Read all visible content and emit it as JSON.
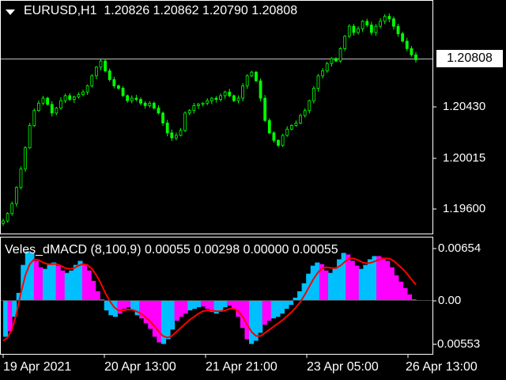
{
  "price_panel": {
    "symbol_tf": "EURUSD,H1",
    "open": "1.20826",
    "high": "1.20862",
    "low": "1.20790",
    "close": "1.20808",
    "current_price_tag": "1.20808",
    "price_axis": [
      "1.20430",
      "1.20015",
      "1.19600"
    ],
    "candle_color": "#00ff00",
    "bid_line_color": "#c0c0c0",
    "price_series": [
      1.1951,
      1.1957,
      1.1965,
      1.1978,
      1.1993,
      1.201,
      1.2028,
      1.204,
      1.2046,
      1.205,
      1.2045,
      1.2038,
      1.2042,
      1.2048,
      1.2052,
      1.2049,
      1.2051,
      1.2053,
      1.2055,
      1.206,
      1.2068,
      1.2075,
      1.208,
      1.2072,
      1.2065,
      1.206,
      1.2058,
      1.2052,
      1.2048,
      1.205,
      1.2049,
      1.2046,
      1.2044,
      1.2046,
      1.2042,
      1.2038,
      1.203,
      1.2022,
      1.2018,
      1.202,
      1.2024,
      1.2038,
      1.204,
      1.2044,
      1.2045,
      1.2046,
      1.2048,
      1.205,
      1.2049,
      1.2052,
      1.2055,
      1.2052,
      1.2048,
      1.205,
      1.206,
      1.2068,
      1.2071,
      1.2064,
      1.205,
      1.2032,
      1.2022,
      1.2016,
      1.2012,
      1.202,
      1.2025,
      1.2028,
      1.203,
      1.2036,
      1.204,
      1.2048,
      1.2058,
      1.2068,
      1.2072,
      1.2078,
      1.2082,
      1.208,
      1.209,
      1.21,
      1.2108,
      1.2103,
      1.2106,
      1.2112,
      1.2109,
      1.2103,
      1.2108,
      1.2112,
      1.2116,
      1.2114,
      1.2108,
      1.2102,
      1.2096,
      1.209,
      1.2085,
      1.2081
    ]
  },
  "indicator_panel": {
    "title": "Veles_dMACD (8,100,9) 0.00055 0.00298 0.00000 0.00055",
    "axis": [
      "0.00654",
      "0.00",
      "-0.00553"
    ],
    "bar_colors": [
      "#00bfff",
      "#ff00ff"
    ],
    "signal_color": "#ff0000",
    "histogram": [
      -0.0045,
      -0.0038,
      -0.002,
      0.001,
      0.0045,
      0.0062,
      0.006,
      0.005,
      0.0042,
      0.004,
      0.0045,
      0.0048,
      0.0044,
      0.0038,
      0.0035,
      0.0038,
      0.0045,
      0.005,
      0.0046,
      0.0038,
      0.0025,
      0.0012,
      0.0002,
      -0.0012,
      -0.0018,
      -0.002,
      -0.0016,
      -0.001,
      -0.0008,
      -0.0012,
      -0.0018,
      -0.0022,
      -0.0028,
      -0.0035,
      -0.0045,
      -0.0052,
      -0.0054,
      -0.0048,
      -0.0036,
      -0.0025,
      -0.002,
      -0.0016,
      -0.0012,
      -0.001,
      -0.0008,
      -0.0007,
      -0.001,
      -0.0014,
      -0.0016,
      -0.0012,
      -0.0008,
      -0.0006,
      -0.001,
      -0.002,
      -0.0034,
      -0.0048,
      -0.0054,
      -0.005,
      -0.004,
      -0.003,
      -0.0025,
      -0.0022,
      -0.002,
      -0.0016,
      -0.001,
      -0.0005,
      0.0004,
      0.0012,
      0.0022,
      0.0034,
      0.0044,
      0.0048,
      0.0046,
      0.0038,
      0.0035,
      0.004,
      0.0052,
      0.006,
      0.0058,
      0.005,
      0.0044,
      0.004,
      0.0045,
      0.0052,
      0.0056,
      0.0056,
      0.0054,
      0.005,
      0.0042,
      0.0032,
      0.0024,
      0.0016,
      0.0008,
      0.0002
    ],
    "hist_colors": [
      0,
      1,
      0,
      0,
      0,
      0,
      0,
      1,
      1,
      0,
      0,
      0,
      1,
      1,
      0,
      0,
      0,
      0,
      1,
      1,
      1,
      1,
      1,
      0,
      0,
      0,
      1,
      1,
      1,
      0,
      0,
      1,
      1,
      1,
      1,
      1,
      0,
      0,
      0,
      1,
      1,
      1,
      0,
      0,
      0,
      1,
      1,
      1,
      0,
      0,
      0,
      1,
      1,
      1,
      1,
      1,
      0,
      0,
      0,
      1,
      1,
      0,
      0,
      0,
      0,
      0,
      0,
      0,
      0,
      0,
      0,
      0,
      1,
      1,
      0,
      0,
      0,
      0,
      1,
      1,
      1,
      0,
      0,
      0,
      0,
      1,
      1,
      1,
      1,
      1,
      1,
      1,
      1,
      1
    ],
    "signal": [
      -0.005,
      -0.0046,
      -0.0036,
      -0.0016,
      0.001,
      0.0032,
      0.0046,
      0.0052,
      0.0051,
      0.0048,
      0.0046,
      0.0046,
      0.0046,
      0.0044,
      0.0041,
      0.004,
      0.0041,
      0.0044,
      0.0046,
      0.0045,
      0.004,
      0.0032,
      0.0022,
      0.001,
      0.0,
      -0.0008,
      -0.0012,
      -0.0012,
      -0.0011,
      -0.0011,
      -0.0013,
      -0.0016,
      -0.002,
      -0.0025,
      -0.0031,
      -0.0038,
      -0.0044,
      -0.0046,
      -0.0044,
      -0.0039,
      -0.0034,
      -0.0029,
      -0.0024,
      -0.002,
      -0.0016,
      -0.0013,
      -0.0012,
      -0.0012,
      -0.0013,
      -0.0013,
      -0.0012,
      -0.001,
      -0.001,
      -0.0013,
      -0.002,
      -0.003,
      -0.0039,
      -0.0044,
      -0.0044,
      -0.004,
      -0.0036,
      -0.0032,
      -0.0028,
      -0.0024,
      -0.0019,
      -0.0014,
      -0.0008,
      -0.0001,
      0.0008,
      0.0018,
      0.0028,
      0.0036,
      0.0041,
      0.0042,
      0.0041,
      0.0041,
      0.0044,
      0.0049,
      0.0053,
      0.0053,
      0.0051,
      0.0048,
      0.0047,
      0.0048,
      0.005,
      0.0052,
      0.0053,
      0.0053,
      0.005,
      0.0045,
      0.004,
      0.0034,
      0.0027,
      0.002
    ]
  },
  "time_axis": [
    "19 Apr 2021",
    "20 Apr 13:00",
    "21 Apr 21:00",
    "23 Apr 05:00",
    "26 Apr 13:00"
  ]
}
